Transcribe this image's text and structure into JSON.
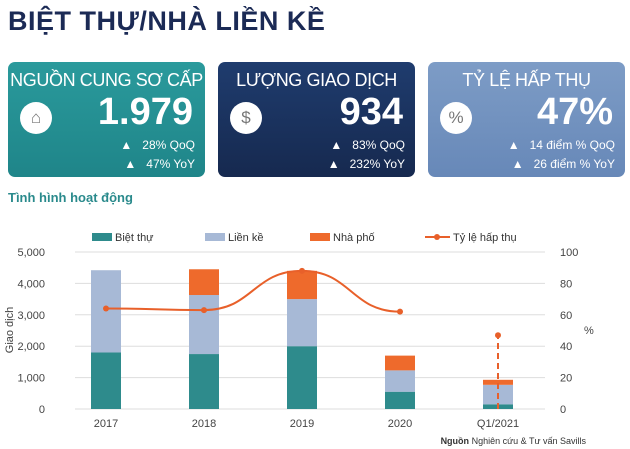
{
  "title": "BIỆT THỰ/NHÀ LIỀN KỀ",
  "cards": [
    {
      "title": "NGUỒN CUNG SƠ CẤP",
      "value": "1.979",
      "icon": "house-icon",
      "qoq": "28% QoQ",
      "yoy": "47% YoY"
    },
    {
      "title": "LƯỢNG GIAO DỊCH",
      "value": "934",
      "icon": "dollar-coin-icon",
      "qoq": "83% QoQ",
      "yoy": "232% YoY"
    },
    {
      "title": "TỶ LỆ HẤP THỤ",
      "value": "47%",
      "icon": "percent-icon",
      "qoq": "14 điểm % QoQ",
      "yoy": "26 điểm % YoY"
    }
  ],
  "section_title": "Tình hình hoạt động",
  "source_bold": "Nguồn",
  "source": " Nghiên cứu & Tư vấn Savills",
  "chart_data": {
    "type": "bar",
    "stacked": true,
    "categories": [
      "2017",
      "2018",
      "2019",
      "2020",
      "Q1/2021"
    ],
    "series": [
      {
        "name": "Biệt thự",
        "color": "#2e8b8c",
        "values": [
          1800,
          1750,
          2000,
          550,
          150
        ]
      },
      {
        "name": "Liền kề",
        "color": "#a7b9d6",
        "values": [
          2620,
          1880,
          1500,
          680,
          620
        ]
      },
      {
        "name": "Nhà phố",
        "color": "#ee6a2c",
        "values": [
          0,
          820,
          900,
          470,
          160
        ]
      }
    ],
    "line": {
      "name": "Tỷ lệ hấp thụ",
      "color": "#e8602a",
      "axis": "right",
      "values": [
        64,
        63,
        88,
        62,
        47
      ]
    },
    "ylabel": "Giao dịch",
    "y2label": "%",
    "ylim": [
      0,
      5000
    ],
    "yticks": [
      "0",
      "1,000",
      "2,000",
      "3,000",
      "4,000",
      "5,000"
    ],
    "y2lim": [
      0,
      100
    ],
    "y2ticks": [
      "0",
      "20",
      "40",
      "60",
      "80",
      "100"
    ],
    "grid": true,
    "legend": "top"
  }
}
